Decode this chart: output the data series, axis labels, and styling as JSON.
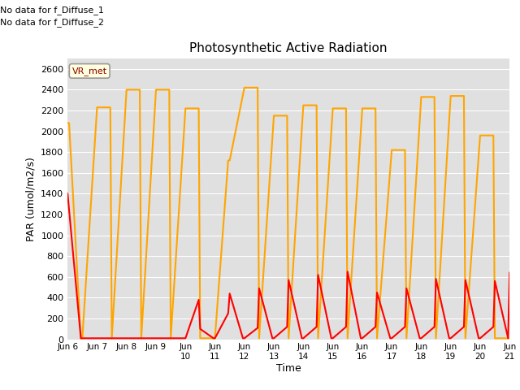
{
  "title": "Photosynthetic Active Radiation",
  "ylabel": "PAR (umol/m2/s)",
  "xlabel": "Time",
  "text_top_left_1": "No data for f_Diffuse_1",
  "text_top_left_2": "No data for f_Diffuse_2",
  "label_box": "VR_met",
  "ylim": [
    0,
    2700
  ],
  "yticks": [
    0,
    200,
    400,
    600,
    800,
    1000,
    1200,
    1400,
    1600,
    1800,
    2000,
    2200,
    2400,
    2600
  ],
  "xtick_labels": [
    "Jun 6",
    "Jun 7",
    "Jun 8",
    "Jun 9",
    "Jun\n10",
    "Jun\n11",
    "Jun\n12",
    "Jun\n13",
    "Jun\n14",
    "Jun\n15",
    "Jun\n16",
    "Jun\n17",
    "Jun\n18",
    "Jun\n19",
    "Jun\n20",
    "Jun\n21"
  ],
  "xtick_positions": [
    0,
    1,
    2,
    3,
    4,
    5,
    6,
    7,
    8,
    9,
    10,
    11,
    12,
    13,
    14,
    15
  ],
  "color_par_in": "#FF0000",
  "color_par_out": "#FFA500",
  "bg_color": "#E0E0E0",
  "line_width": 1.5,
  "par_out_x": [
    0,
    0.05,
    0.45,
    0.5,
    1.0,
    1.45,
    1.5,
    2.0,
    2.45,
    2.5,
    3.0,
    3.45,
    3.5,
    4.0,
    4.45,
    4.5,
    5.0,
    5.45,
    5.5,
    6.0,
    6.45,
    6.5,
    7.0,
    7.45,
    7.5,
    8.0,
    8.45,
    8.5,
    9.0,
    9.45,
    9.5,
    10.0,
    10.45,
    10.5,
    11.0,
    11.45,
    11.5,
    12.0,
    12.45,
    12.5,
    13.0,
    13.45,
    13.5,
    14.0,
    14.45,
    14.5,
    15.0
  ],
  "par_out_y": [
    2080,
    2080,
    10,
    10,
    2230,
    2230,
    10,
    2400,
    2400,
    10,
    2400,
    2400,
    10,
    2220,
    2220,
    10,
    10,
    1720,
    1720,
    2420,
    2420,
    10,
    2150,
    2150,
    10,
    2250,
    2250,
    10,
    2220,
    2220,
    10,
    2220,
    2220,
    10,
    1820,
    1820,
    10,
    2330,
    2330,
    10,
    2340,
    2340,
    10,
    1960,
    1960,
    10,
    10
  ],
  "par_in_x": [
    0,
    0.45,
    1.0,
    1.95,
    2.0,
    2.95,
    3.0,
    3.95,
    4.0,
    4.45,
    4.5,
    4.95,
    5.0,
    5.45,
    5.5,
    5.95,
    6.0,
    6.45,
    6.5,
    6.95,
    7.0,
    7.45,
    7.5,
    7.95,
    8.0,
    8.45,
    8.5,
    8.95,
    9.0,
    9.45,
    9.5,
    9.95,
    10.0,
    10.45,
    10.5,
    10.95,
    11.0,
    11.45,
    11.5,
    11.95,
    12.0,
    12.45,
    12.5,
    12.95,
    13.0,
    13.45,
    13.5,
    13.95,
    14.0,
    14.45,
    14.5,
    14.95,
    15.0
  ],
  "par_in_y": [
    1400,
    10,
    10,
    10,
    10,
    10,
    10,
    10,
    10,
    380,
    100,
    10,
    10,
    250,
    440,
    10,
    10,
    110,
    490,
    10,
    10,
    120,
    570,
    10,
    10,
    120,
    620,
    10,
    10,
    120,
    650,
    10,
    10,
    120,
    450,
    10,
    10,
    120,
    490,
    10,
    10,
    120,
    580,
    10,
    10,
    120,
    570,
    10,
    10,
    120,
    560,
    10,
    640
  ]
}
